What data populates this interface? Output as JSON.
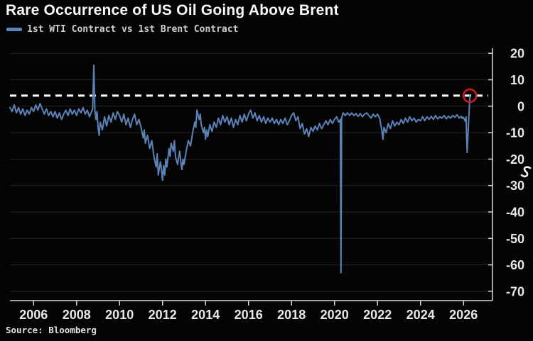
{
  "title": "Rare Occurrence of US Oil Going Above Brent",
  "legend": {
    "label": "1st WTI Contract vs 1st Brent Contract",
    "color": "#5b83b8"
  },
  "source": "Source: Bloomberg",
  "chart_data": {
    "type": "line",
    "title": "Rare Occurrence of US Oil Going Above Brent",
    "xlabel": "",
    "ylabel": "",
    "legend_position": "top-left",
    "grid": "horizontal",
    "background": "#040404",
    "grid_color": "#232323",
    "axis_color": "#d8d8d8",
    "x_ticks": [
      2006,
      2008,
      2010,
      2012,
      2014,
      2016,
      2018,
      2020,
      2022,
      2024,
      2026
    ],
    "y_ticks": [
      20,
      10,
      0,
      -10,
      -20,
      -30,
      -40,
      -50,
      -60,
      -70
    ],
    "xlim": [
      2004.9,
      2027.35
    ],
    "ylim": [
      -73.5,
      21.4
    ],
    "reference_line": {
      "value": 4,
      "style": "dashed",
      "color": "#ffffff"
    },
    "annotation_circle": {
      "x": 2026.3,
      "y": 4,
      "radius": 9,
      "color": "#cf1d1d"
    },
    "scribble_annotation": {
      "color": "#f0f0f0",
      "near_value": -25,
      "side": "right-margin"
    },
    "series": [
      {
        "name": "1st WTI Contract vs 1st Brent Contract",
        "color": "#5b83b8",
        "points": [
          [
            2004.9,
            -0.5
          ],
          [
            2005.0,
            -2
          ],
          [
            2005.1,
            0.5
          ],
          [
            2005.2,
            -2.5
          ],
          [
            2005.3,
            -0.5
          ],
          [
            2005.4,
            -3
          ],
          [
            2005.5,
            -1
          ],
          [
            2005.6,
            -3.5
          ],
          [
            2005.7,
            -1.5
          ],
          [
            2005.8,
            -3
          ],
          [
            2005.9,
            -0.5
          ],
          [
            2006.0,
            -2
          ],
          [
            2006.1,
            0.5
          ],
          [
            2006.2,
            -1.5
          ],
          [
            2006.3,
            1
          ],
          [
            2006.4,
            -1
          ],
          [
            2006.5,
            -3
          ],
          [
            2006.6,
            -1
          ],
          [
            2006.7,
            -3.5
          ],
          [
            2006.8,
            -2
          ],
          [
            2006.9,
            -4
          ],
          [
            2007.0,
            -2
          ],
          [
            2007.1,
            -4.5
          ],
          [
            2007.2,
            -2.5
          ],
          [
            2007.3,
            -5
          ],
          [
            2007.4,
            -3
          ],
          [
            2007.5,
            -1.5
          ],
          [
            2007.6,
            -3.5
          ],
          [
            2007.7,
            -1
          ],
          [
            2007.8,
            -3
          ],
          [
            2007.9,
            -1.5
          ],
          [
            2008.0,
            -3.5
          ],
          [
            2008.1,
            -1
          ],
          [
            2008.2,
            -2.5
          ],
          [
            2008.3,
            -0.5
          ],
          [
            2008.4,
            -3
          ],
          [
            2008.5,
            -1.5
          ],
          [
            2008.6,
            -4
          ],
          [
            2008.7,
            -2
          ],
          [
            2008.75,
            -1
          ],
          [
            2008.8,
            15.5
          ],
          [
            2008.85,
            -1.5
          ],
          [
            2008.9,
            -5
          ],
          [
            2008.95,
            -2
          ],
          [
            2009.0,
            -8
          ],
          [
            2009.05,
            -11
          ],
          [
            2009.1,
            -6
          ],
          [
            2009.2,
            -9
          ],
          [
            2009.3,
            -4
          ],
          [
            2009.4,
            -7.5
          ],
          [
            2009.5,
            -3.5
          ],
          [
            2009.6,
            -6
          ],
          [
            2009.7,
            -2.5
          ],
          [
            2009.8,
            -5
          ],
          [
            2009.9,
            -2
          ],
          [
            2010.0,
            -3.5
          ],
          [
            2010.1,
            -6
          ],
          [
            2010.2,
            -3
          ],
          [
            2010.3,
            -7
          ],
          [
            2010.4,
            -4.5
          ],
          [
            2010.5,
            -8
          ],
          [
            2010.6,
            -5
          ],
          [
            2010.7,
            -3
          ],
          [
            2010.8,
            -7
          ],
          [
            2010.9,
            -5
          ],
          [
            2011.0,
            -8
          ],
          [
            2011.1,
            -12
          ],
          [
            2011.15,
            -9
          ],
          [
            2011.2,
            -14
          ],
          [
            2011.3,
            -11
          ],
          [
            2011.4,
            -16
          ],
          [
            2011.5,
            -13
          ],
          [
            2011.6,
            -19
          ],
          [
            2011.7,
            -23
          ],
          [
            2011.75,
            -18
          ],
          [
            2011.8,
            -26
          ],
          [
            2011.9,
            -21
          ],
          [
            2011.95,
            -24
          ],
          [
            2012.0,
            -28
          ],
          [
            2012.05,
            -22.5
          ],
          [
            2012.1,
            -26
          ],
          [
            2012.15,
            -20
          ],
          [
            2012.2,
            -23
          ],
          [
            2012.3,
            -16
          ],
          [
            2012.35,
            -19
          ],
          [
            2012.4,
            -14
          ],
          [
            2012.5,
            -17
          ],
          [
            2012.55,
            -13
          ],
          [
            2012.6,
            -19
          ],
          [
            2012.7,
            -22
          ],
          [
            2012.8,
            -17
          ],
          [
            2012.85,
            -21
          ],
          [
            2012.9,
            -24
          ],
          [
            2012.95,
            -20
          ],
          [
            2013.0,
            -22
          ],
          [
            2013.1,
            -17
          ],
          [
            2013.2,
            -13
          ],
          [
            2013.3,
            -15
          ],
          [
            2013.4,
            -10
          ],
          [
            2013.5,
            -6
          ],
          [
            2013.55,
            -8
          ],
          [
            2013.6,
            -1.5
          ],
          [
            2013.7,
            -5
          ],
          [
            2013.75,
            -3
          ],
          [
            2013.8,
            -7
          ],
          [
            2013.9,
            -10
          ],
          [
            2013.95,
            -8
          ],
          [
            2014.0,
            -12.5
          ],
          [
            2014.05,
            -9
          ],
          [
            2014.1,
            -11.5
          ],
          [
            2014.2,
            -7
          ],
          [
            2014.3,
            -9.5
          ],
          [
            2014.4,
            -6
          ],
          [
            2014.5,
            -8
          ],
          [
            2014.6,
            -4.5
          ],
          [
            2014.7,
            -7
          ],
          [
            2014.8,
            -3.5
          ],
          [
            2014.9,
            -6
          ],
          [
            2015.0,
            -4
          ],
          [
            2015.1,
            -7
          ],
          [
            2015.2,
            -4.5
          ],
          [
            2015.3,
            -8
          ],
          [
            2015.4,
            -5
          ],
          [
            2015.5,
            -7
          ],
          [
            2015.6,
            -3.5
          ],
          [
            2015.7,
            -6
          ],
          [
            2015.8,
            -3
          ],
          [
            2015.9,
            -5.5
          ],
          [
            2016.0,
            -3
          ],
          [
            2016.1,
            -1.5
          ],
          [
            2016.2,
            -4.5
          ],
          [
            2016.3,
            -2.5
          ],
          [
            2016.4,
            -5.5
          ],
          [
            2016.5,
            -3.5
          ],
          [
            2016.6,
            -6
          ],
          [
            2016.7,
            -4
          ],
          [
            2016.8,
            -6.5
          ],
          [
            2016.9,
            -4.5
          ],
          [
            2017.0,
            -6
          ],
          [
            2017.1,
            -4.5
          ],
          [
            2017.2,
            -6.5
          ],
          [
            2017.3,
            -5
          ],
          [
            2017.4,
            -7
          ],
          [
            2017.5,
            -5
          ],
          [
            2017.6,
            -6.5
          ],
          [
            2017.7,
            -4.5
          ],
          [
            2017.8,
            -7
          ],
          [
            2017.9,
            -5.5
          ],
          [
            2018.0,
            -3.5
          ],
          [
            2018.1,
            -2.5
          ],
          [
            2018.2,
            -5.5
          ],
          [
            2018.3,
            -4
          ],
          [
            2018.4,
            -8.5
          ],
          [
            2018.5,
            -6.5
          ],
          [
            2018.6,
            -10.5
          ],
          [
            2018.7,
            -8.5
          ],
          [
            2018.8,
            -11.5
          ],
          [
            2018.9,
            -8
          ],
          [
            2019.0,
            -9.5
          ],
          [
            2019.1,
            -7.5
          ],
          [
            2019.2,
            -9
          ],
          [
            2019.3,
            -6.5
          ],
          [
            2019.4,
            -8.5
          ],
          [
            2019.5,
            -7
          ],
          [
            2019.6,
            -5.5
          ],
          [
            2019.7,
            -7
          ],
          [
            2019.8,
            -5
          ],
          [
            2019.9,
            -6.5
          ],
          [
            2020.0,
            -5
          ],
          [
            2020.1,
            -4
          ],
          [
            2020.2,
            -6
          ],
          [
            2020.27,
            -5
          ],
          [
            2020.3,
            -63
          ],
          [
            2020.33,
            -4.5
          ],
          [
            2020.4,
            -2.5
          ],
          [
            2020.5,
            -3.5
          ],
          [
            2020.6,
            -2.5
          ],
          [
            2020.7,
            -3.5
          ],
          [
            2020.8,
            -2.5
          ],
          [
            2020.9,
            -3.5
          ],
          [
            2021.0,
            -2.8
          ],
          [
            2021.1,
            -3.8
          ],
          [
            2021.2,
            -2.8
          ],
          [
            2021.3,
            -4
          ],
          [
            2021.4,
            -3
          ],
          [
            2021.5,
            -2.5
          ],
          [
            2021.6,
            -3.5
          ],
          [
            2021.7,
            -4.5
          ],
          [
            2021.8,
            -3
          ],
          [
            2021.9,
            -4
          ],
          [
            2022.0,
            -3
          ],
          [
            2022.1,
            -4.5
          ],
          [
            2022.2,
            -9
          ],
          [
            2022.25,
            -12.5
          ],
          [
            2022.3,
            -8
          ],
          [
            2022.4,
            -10
          ],
          [
            2022.5,
            -6.5
          ],
          [
            2022.6,
            -8.5
          ],
          [
            2022.7,
            -5.5
          ],
          [
            2022.8,
            -7.5
          ],
          [
            2022.9,
            -6
          ],
          [
            2023.0,
            -7
          ],
          [
            2023.1,
            -5
          ],
          [
            2023.2,
            -6.5
          ],
          [
            2023.3,
            -4.5
          ],
          [
            2023.4,
            -6
          ],
          [
            2023.5,
            -4
          ],
          [
            2023.6,
            -5.5
          ],
          [
            2023.7,
            -4.5
          ],
          [
            2023.8,
            -6
          ],
          [
            2023.9,
            -5
          ],
          [
            2024.0,
            -5.5
          ],
          [
            2024.1,
            -4
          ],
          [
            2024.2,
            -5.5
          ],
          [
            2024.3,
            -4
          ],
          [
            2024.4,
            -5
          ],
          [
            2024.5,
            -3.8
          ],
          [
            2024.6,
            -5
          ],
          [
            2024.7,
            -3.5
          ],
          [
            2024.8,
            -4.8
          ],
          [
            2024.9,
            -4
          ],
          [
            2025.0,
            -4.5
          ],
          [
            2025.1,
            -3.5
          ],
          [
            2025.2,
            -4.8
          ],
          [
            2025.3,
            -3.8
          ],
          [
            2025.4,
            -4.5
          ],
          [
            2025.5,
            -3.5
          ],
          [
            2025.6,
            -4.2
          ],
          [
            2025.7,
            -3.2
          ],
          [
            2025.8,
            -4.5
          ],
          [
            2025.9,
            -3.8
          ],
          [
            2025.95,
            -4.6
          ],
          [
            2026.0,
            -4.2
          ],
          [
            2026.05,
            -5.2
          ],
          [
            2026.1,
            -5.8
          ],
          [
            2026.12,
            -4
          ],
          [
            2026.17,
            -17.5
          ],
          [
            2026.3,
            4
          ]
        ]
      }
    ]
  }
}
